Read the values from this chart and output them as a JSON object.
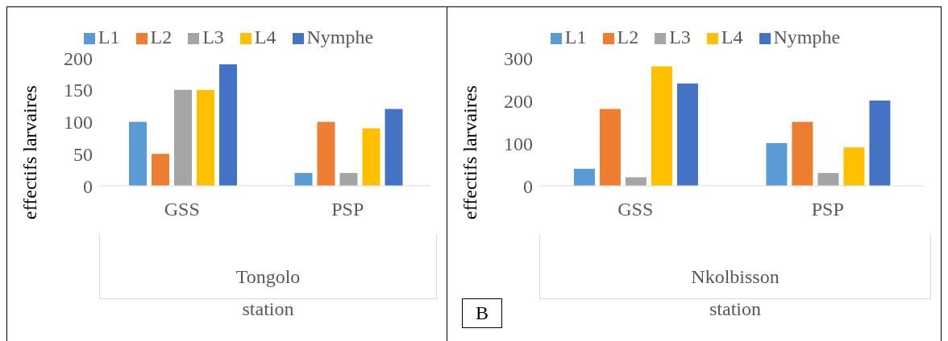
{
  "chart_data": [
    {
      "type": "bar",
      "categories": [
        "GSS",
        "PSP"
      ],
      "xlabel": "station",
      "ylabel": "effectifs larvaires",
      "annotations": [
        "Tongolo"
      ],
      "legend": "top",
      "grid": false,
      "ylim": [
        0,
        200
      ],
      "yticks": [
        0,
        50,
        100,
        150,
        200
      ],
      "series": [
        {
          "name": "L1",
          "color": "#5b9bd5",
          "values": [
            100,
            20
          ]
        },
        {
          "name": "L2",
          "color": "#ed7d31",
          "values": [
            50,
            100
          ]
        },
        {
          "name": "L3",
          "color": "#a5a5a5",
          "values": [
            150,
            20
          ]
        },
        {
          "name": "L4",
          "color": "#ffc000",
          "values": [
            150,
            90
          ]
        },
        {
          "name": "Nymphe",
          "color": "#4472c4",
          "values": [
            190,
            120
          ]
        }
      ]
    },
    {
      "type": "bar",
      "categories": [
        "GSS",
        "PSP"
      ],
      "xlabel": "station",
      "ylabel": "effectifs larvaires",
      "annotations": [
        "Nkolbisson",
        "B"
      ],
      "legend": "top",
      "grid": false,
      "ylim": [
        0,
        300
      ],
      "yticks": [
        0,
        100,
        200,
        300
      ],
      "series": [
        {
          "name": "L1",
          "color": "#5b9bd5",
          "values": [
            40,
            100
          ]
        },
        {
          "name": "L2",
          "color": "#ed7d31",
          "values": [
            180,
            150
          ]
        },
        {
          "name": "L3",
          "color": "#a5a5a5",
          "values": [
            20,
            30
          ]
        },
        {
          "name": "L4",
          "color": "#ffc000",
          "values": [
            280,
            90
          ]
        },
        {
          "name": "Nymphe",
          "color": "#4472c4",
          "values": [
            240,
            200
          ]
        }
      ]
    }
  ]
}
